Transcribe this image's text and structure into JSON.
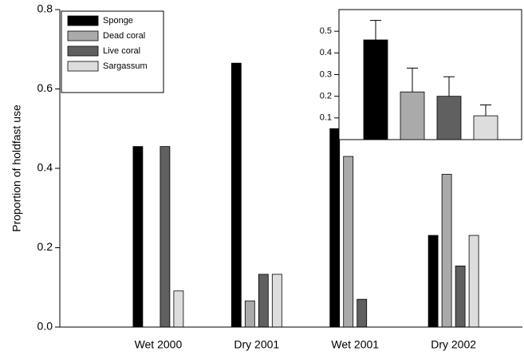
{
  "chart_data": [
    {
      "type": "bar",
      "ylabel": "Proportion of holdfast use",
      "categories": [
        "Wet 2000",
        "Dry 2001",
        "Wet 2001",
        "Dry 2002"
      ],
      "series": [
        {
          "name": "Sponge",
          "color": "#000000",
          "values": [
            0.455,
            0.665,
            0.5,
            0.231
          ]
        },
        {
          "name": "Dead coral",
          "color": "#aaaaaa",
          "values": [
            0,
            0.066,
            0.43,
            0.385
          ]
        },
        {
          "name": "Live coral",
          "color": "#606060",
          "values": [
            0.455,
            0.133,
            0.07,
            0.154
          ]
        },
        {
          "name": "Sargassum",
          "color": "#dddddd",
          "values": [
            0.091,
            0.133,
            0,
            0.231
          ]
        }
      ],
      "ylim": [
        0,
        0.8
      ],
      "yticks": [
        {
          "value": 0,
          "label": "0.0"
        },
        0.2,
        0.4,
        0.6,
        0.8
      ],
      "legend": "upper left"
    },
    {
      "type": "bar",
      "values": [
        0.46,
        0.22,
        0.2,
        0.11
      ],
      "errors": [
        0.09,
        0.11,
        0.09,
        0.05
      ],
      "colors": [
        "#000000",
        "#aaaaaa",
        "#606060",
        "#dddddd"
      ],
      "ylim": [
        0,
        0.6
      ],
      "yticks": [
        0.1,
        0.2,
        0.3,
        0.4,
        0.5
      ]
    }
  ]
}
